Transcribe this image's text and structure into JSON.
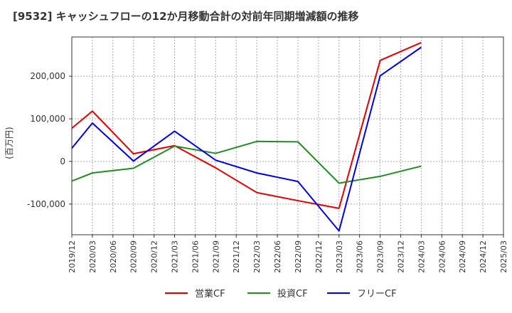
{
  "chart_data": {
    "type": "line",
    "title": "[9532]  キャッシュフローの12か月移動合計の対前年同期増減額の推移",
    "ylabel": "(百万円)",
    "xlabel": "",
    "x": [
      "2019/12",
      "2020/03",
      "2020/06",
      "2020/09",
      "2020/12",
      "2021/03",
      "2021/06",
      "2021/09",
      "2021/12",
      "2022/03",
      "2022/06",
      "2022/09",
      "2022/12",
      "2023/03",
      "2023/06",
      "2023/09",
      "2023/12",
      "2024/03",
      "2024/06",
      "2024/09",
      "2024/12",
      "2025/03"
    ],
    "ylim": [
      -172000,
      292000
    ],
    "yticks": [
      200000,
      100000,
      0,
      -100000
    ],
    "ytick_labels": [
      "200,000",
      "100,000",
      "0",
      "-100,000"
    ],
    "grid": true,
    "legend_position": "bottom-center",
    "series": [
      {
        "name": "営業CF",
        "color": "#dd0000",
        "points": [
          [
            "2019/12",
            78000
          ],
          [
            "2020/03",
            118000
          ],
          [
            "2020/09",
            18000
          ],
          [
            "2021/03",
            37000
          ],
          [
            "2021/09",
            -15000
          ],
          [
            "2022/03",
            -73000
          ],
          [
            "2022/09",
            -92000
          ],
          [
            "2023/03",
            -110000
          ],
          [
            "2023/09",
            237000
          ],
          [
            "2024/03",
            279000
          ]
        ]
      },
      {
        "name": "投資CF",
        "color": "#228b22",
        "points": [
          [
            "2019/12",
            -46000
          ],
          [
            "2020/03",
            -27000
          ],
          [
            "2020/09",
            -16000
          ],
          [
            "2021/03",
            36000
          ],
          [
            "2021/09",
            19000
          ],
          [
            "2022/03",
            47000
          ],
          [
            "2022/09",
            46000
          ],
          [
            "2023/03",
            -51000
          ],
          [
            "2023/09",
            -35000
          ],
          [
            "2024/03",
            -11000
          ]
        ]
      },
      {
        "name": "フリーCF",
        "color": "#0000dd",
        "points": [
          [
            "2019/12",
            31000
          ],
          [
            "2020/03",
            90000
          ],
          [
            "2020/09",
            1000
          ],
          [
            "2021/03",
            71000
          ],
          [
            "2021/09",
            3000
          ],
          [
            "2022/03",
            -27000
          ],
          [
            "2022/09",
            -47000
          ],
          [
            "2023/03",
            -163000
          ],
          [
            "2023/09",
            201000
          ],
          [
            "2024/03",
            268000
          ]
        ]
      }
    ]
  }
}
